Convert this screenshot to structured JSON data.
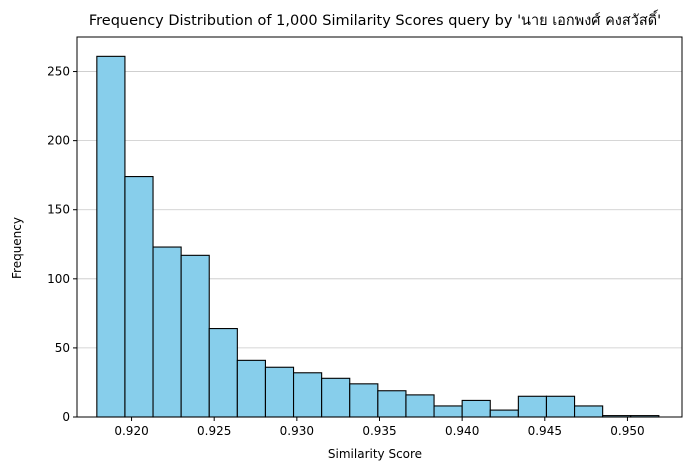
{
  "chart_data": {
    "type": "bar",
    "title": "Frequency Distribution of 1,000 Similarity Scores query by 'นาย เอกพงศ์ คงสวัสดิ์'",
    "xlabel": "Similarity Score",
    "ylabel": "Frequency",
    "xlim": [
      0.9167,
      0.9533
    ],
    "ylim": [
      0,
      275
    ],
    "xticks": [
      "0.920",
      "0.925",
      "0.930",
      "0.935",
      "0.940",
      "0.945",
      "0.950"
    ],
    "xtick_values": [
      0.92,
      0.925,
      0.93,
      0.935,
      0.94,
      0.945,
      0.95
    ],
    "yticks": [
      "0",
      "50",
      "100",
      "150",
      "200",
      "250"
    ],
    "ytick_values": [
      0,
      50,
      100,
      150,
      200,
      250
    ],
    "grid": "horizontal",
    "bin_edges": [
      0.9179,
      0.9196,
      0.9213,
      0.923,
      0.9247,
      0.9264,
      0.9281,
      0.9298,
      0.9315,
      0.9332,
      0.9349,
      0.9366,
      0.9383,
      0.94,
      0.9417,
      0.9434,
      0.9451,
      0.9468,
      0.9485,
      0.9502,
      0.9519
    ],
    "values": [
      261,
      174,
      123,
      117,
      64,
      41,
      36,
      32,
      28,
      24,
      19,
      16,
      8,
      12,
      5,
      15,
      15,
      8,
      1,
      1
    ],
    "bar_color": "#87ceeb",
    "edge_color": "#000000",
    "grid_color": "#c8c8c8"
  }
}
